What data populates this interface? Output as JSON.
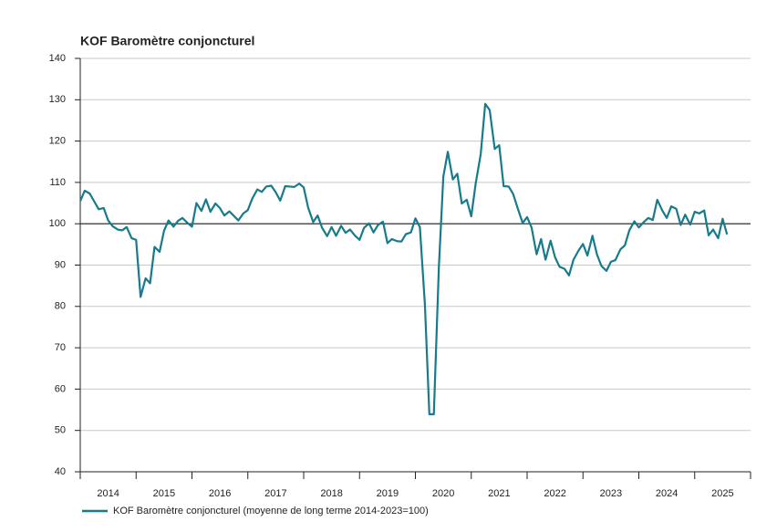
{
  "chart_data": {
    "type": "line",
    "title": "KOF Baromètre conjoncturel",
    "xlim": [
      2014,
      2026
    ],
    "xticks": [
      2014,
      2015,
      2016,
      2017,
      2018,
      2019,
      2020,
      2021,
      2022,
      2023,
      2024,
      2025,
      2026
    ],
    "year_labels": [
      "2014",
      "2015",
      "2016",
      "2017",
      "2018",
      "2019",
      "2020",
      "2021",
      "2022",
      "2023",
      "2024",
      "2025"
    ],
    "ylim": [
      40,
      140
    ],
    "yticks": [
      40,
      50,
      60,
      70,
      80,
      90,
      100,
      110,
      120,
      130,
      140
    ],
    "grid": true,
    "reference_line": 100,
    "x": [
      2014.0,
      2014.08,
      2014.17,
      2014.25,
      2014.33,
      2014.42,
      2014.5,
      2014.58,
      2014.67,
      2014.75,
      2014.83,
      2014.92,
      2015.0,
      2015.08,
      2015.17,
      2015.25,
      2015.33,
      2015.42,
      2015.5,
      2015.58,
      2015.67,
      2015.75,
      2015.83,
      2015.92,
      2016.0,
      2016.08,
      2016.17,
      2016.25,
      2016.33,
      2016.42,
      2016.5,
      2016.58,
      2016.67,
      2016.75,
      2016.83,
      2016.92,
      2017.0,
      2017.08,
      2017.17,
      2017.25,
      2017.33,
      2017.42,
      2017.5,
      2017.58,
      2017.67,
      2017.75,
      2017.83,
      2017.92,
      2018.0,
      2018.08,
      2018.17,
      2018.25,
      2018.33,
      2018.42,
      2018.5,
      2018.58,
      2018.67,
      2018.75,
      2018.83,
      2018.92,
      2019.0,
      2019.08,
      2019.17,
      2019.25,
      2019.33,
      2019.42,
      2019.5,
      2019.58,
      2019.67,
      2019.75,
      2019.83,
      2019.92,
      2020.0,
      2020.08,
      2020.17,
      2020.25,
      2020.33,
      2020.42,
      2020.5,
      2020.58,
      2020.67,
      2020.75,
      2020.83,
      2020.92,
      2021.0,
      2021.08,
      2021.17,
      2021.25,
      2021.33,
      2021.42,
      2021.5,
      2021.58,
      2021.67,
      2021.75,
      2021.83,
      2021.92,
      2022.0,
      2022.08,
      2022.17,
      2022.25,
      2022.33,
      2022.42,
      2022.5,
      2022.58,
      2022.67,
      2022.75,
      2022.83,
      2022.92,
      2023.0,
      2023.08,
      2023.17,
      2023.25,
      2023.33,
      2023.42,
      2023.5,
      2023.58,
      2023.67,
      2023.75,
      2023.83,
      2023.92,
      2024.0,
      2024.08,
      2024.17,
      2024.25,
      2024.33,
      2024.42,
      2024.5,
      2024.58,
      2024.67,
      2024.75,
      2024.83,
      2024.92,
      2025.0,
      2025.08,
      2025.17,
      2025.25,
      2025.33,
      2025.42,
      2025.5,
      2025.58
    ],
    "series": [
      {
        "name": "KOF Baromètre conjoncturel (moyenne de long terme 2014-2023=100)",
        "color": "#177b8b",
        "values": [
          105.5,
          108,
          107.3,
          105.4,
          103.5,
          103.8,
          100.8,
          99.4,
          98.6,
          98.4,
          99.2,
          96.5,
          96.1,
          82.3,
          86.8,
          85.6,
          94.4,
          93.2,
          98.3,
          100.8,
          99.3,
          100.7,
          101.4,
          100.2,
          99.3,
          105,
          103.1,
          105.9,
          102.9,
          104.9,
          103.8,
          102,
          103,
          101.9,
          100.8,
          102.5,
          103.3,
          106.1,
          108.3,
          107.7,
          109,
          109.2,
          107.6,
          105.6,
          109.1,
          109,
          108.9,
          109.7,
          108.8,
          103.9,
          100.4,
          102,
          99,
          97,
          99.2,
          97.1,
          99.5,
          97.8,
          98.6,
          97.1,
          96.1,
          99,
          100.1,
          97.9,
          99.7,
          100.5,
          95.3,
          96.3,
          95.8,
          95.7,
          97.5,
          97.9,
          101.3,
          99.2,
          80.5,
          53.9,
          53.9,
          89.5,
          111.4,
          117.4,
          110.7,
          112.1,
          104.9,
          105.8,
          101.8,
          109.8,
          116.9,
          129,
          127.5,
          118.1,
          119,
          109.1,
          109,
          107.2,
          103.8,
          100.2,
          101.6,
          99.1,
          92.6,
          96.3,
          91.3,
          95.9,
          91.9,
          89.6,
          89.1,
          87.5,
          91.3,
          93.5,
          95.1,
          92.3,
          97.1,
          92.6,
          89.8,
          88.6,
          90.8,
          91.2,
          93.8,
          94.8,
          98.4,
          100.6,
          99.1,
          100.3,
          101.4,
          100.9,
          105.8,
          103.2,
          101.4,
          104.2,
          103.6,
          99.7,
          102.2,
          99.8,
          102.9,
          102.5,
          103.2,
          97.2,
          98.6,
          96.5,
          101.2,
          97.4
        ]
      }
    ]
  }
}
